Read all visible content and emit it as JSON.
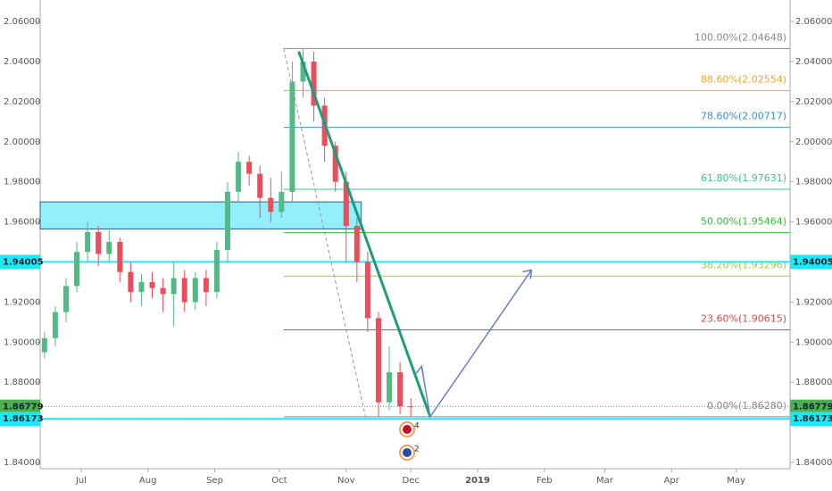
{
  "chart_data": {
    "type": "candlestick",
    "xlim": [
      -19,
      329
    ],
    "ylim": [
      1.8369,
      2.0707
    ],
    "xticks": [
      {
        "value": 0,
        "label": "Jul"
      },
      {
        "value": 31,
        "label": "Aug"
      },
      {
        "value": 62,
        "label": "Sep"
      },
      {
        "value": 92,
        "label": "Oct"
      },
      {
        "value": 123,
        "label": "Nov"
      },
      {
        "value": 153,
        "label": "Dec"
      },
      {
        "value": 184,
        "label": "2019"
      },
      {
        "value": 215,
        "label": "Feb"
      },
      {
        "value": 243,
        "label": "Mar"
      },
      {
        "value": 274,
        "label": "Apr"
      },
      {
        "value": 304,
        "label": "May"
      }
    ],
    "yticks": [
      {
        "value": 1.84,
        "label": "1.84000"
      },
      {
        "value": 1.86,
        "label": "1.86000"
      },
      {
        "value": 1.88,
        "label": "1.88000"
      },
      {
        "value": 1.9,
        "label": "1.90000"
      },
      {
        "value": 1.92,
        "label": "1.92000"
      },
      {
        "value": 1.94,
        "label": "1.94000"
      },
      {
        "value": 1.96,
        "label": "1.96000"
      },
      {
        "value": 1.98,
        "label": "1.98000"
      },
      {
        "value": 2.0,
        "label": "2.00000"
      },
      {
        "value": 2.02,
        "label": "2.02000"
      },
      {
        "value": 2.04,
        "label": "2.04000"
      },
      {
        "value": 2.06,
        "label": "2.06000"
      }
    ],
    "up_color": "#53b987",
    "down_color": "#eb4d5c",
    "x": [
      -17,
      -12,
      -7,
      -2,
      3,
      8,
      13,
      18,
      23,
      28,
      33,
      38,
      43,
      48,
      53,
      58,
      63,
      68,
      73,
      78,
      83,
      88,
      93,
      98,
      103,
      108,
      113,
      118,
      123,
      128,
      133,
      138,
      143,
      148,
      153
    ],
    "open": [
      1.895,
      1.902,
      1.915,
      1.928,
      1.945,
      1.955,
      1.944,
      1.95,
      1.935,
      1.925,
      1.93,
      1.927,
      1.924,
      1.932,
      1.92,
      1.932,
      1.925,
      1.946,
      1.975,
      1.99,
      1.984,
      1.972,
      1.965,
      1.975,
      2.03,
      2.04,
      2.018,
      1.998,
      1.98,
      1.958,
      1.94,
      1.912,
      1.87,
      1.885,
      1.868
    ],
    "high": [
      1.905,
      1.918,
      1.932,
      1.95,
      1.96,
      1.958,
      1.956,
      1.952,
      1.94,
      1.934,
      1.935,
      1.932,
      1.94,
      1.936,
      1.935,
      1.936,
      1.95,
      1.98,
      1.995,
      1.993,
      1.988,
      1.982,
      1.985,
      2.04,
      2.0465,
      2.045,
      2.022,
      2.0,
      1.985,
      1.962,
      1.945,
      1.915,
      1.898,
      1.89,
      1.872
    ],
    "low": [
      1.892,
      1.898,
      1.91,
      1.925,
      1.94,
      1.938,
      1.94,
      1.93,
      1.92,
      1.918,
      1.922,
      1.915,
      1.908,
      1.915,
      1.916,
      1.918,
      1.922,
      1.94,
      1.97,
      1.978,
      1.962,
      1.96,
      1.962,
      1.97,
      2.022,
      2.01,
      1.99,
      1.975,
      1.94,
      1.93,
      1.905,
      1.8628,
      1.866,
      1.864,
      1.8628
    ],
    "close": [
      1.902,
      1.915,
      1.928,
      1.945,
      1.955,
      1.944,
      1.95,
      1.935,
      1.925,
      1.93,
      1.927,
      1.924,
      1.932,
      1.92,
      1.932,
      1.925,
      1.946,
      1.975,
      1.99,
      1.984,
      1.972,
      1.965,
      1.975,
      2.03,
      2.04,
      2.018,
      1.998,
      1.98,
      1.958,
      1.94,
      1.912,
      1.87,
      1.885,
      1.868,
      1.8678
    ],
    "fib_start_x": 94,
    "fib_levels": [
      {
        "label": "100.00%(2.04648)",
        "value": 2.04648,
        "color": "#888888"
      },
      {
        "label": "88.60%(2.02554)",
        "value": 2.02554,
        "color": "#f5a623"
      },
      {
        "label": "78.60%(2.00717)",
        "value": 2.00717,
        "color": "#3d8ed8"
      },
      {
        "label": "61.80%(1.97631)",
        "value": 1.97631,
        "color": "#3cc78a"
      },
      {
        "label": "50.00%(1.95464)",
        "value": 1.95464,
        "color": "#3cb83c"
      },
      {
        "label": "38.20%(1.93296)",
        "value": 1.93296,
        "color": "#a8c83a"
      },
      {
        "label": "23.60%(1.90615)",
        "value": 1.90615,
        "color": "#e04848"
      },
      {
        "label": "0.00%(1.86280)",
        "value": 1.8628,
        "color": "#888888"
      }
    ],
    "zone": {
      "x": [
        -19,
        130
      ],
      "y": [
        1.9565,
        1.97
      ],
      "color": "#80ecfb"
    },
    "price_lines": [
      {
        "value": 1.94005,
        "color": "#1de9f5"
      },
      {
        "value": 1.86779,
        "color": "#4caf50"
      },
      {
        "value": 1.86173,
        "color": "#1de9f5"
      }
    ],
    "trend_line": {
      "x": [
        101,
        162
      ],
      "y": [
        2.045,
        1.8628
      ],
      "color": "#1e9e78"
    },
    "dashed_line": {
      "x": [
        94,
        132
      ],
      "y": [
        2.0465,
        1.8628
      ],
      "color": "#999999"
    },
    "projection": {
      "x": [
        158,
        162,
        209
      ],
      "y": [
        1.888,
        1.8628,
        1.936
      ],
      "color": "#6c7fc6"
    },
    "events": [
      "4",
      "2"
    ]
  }
}
